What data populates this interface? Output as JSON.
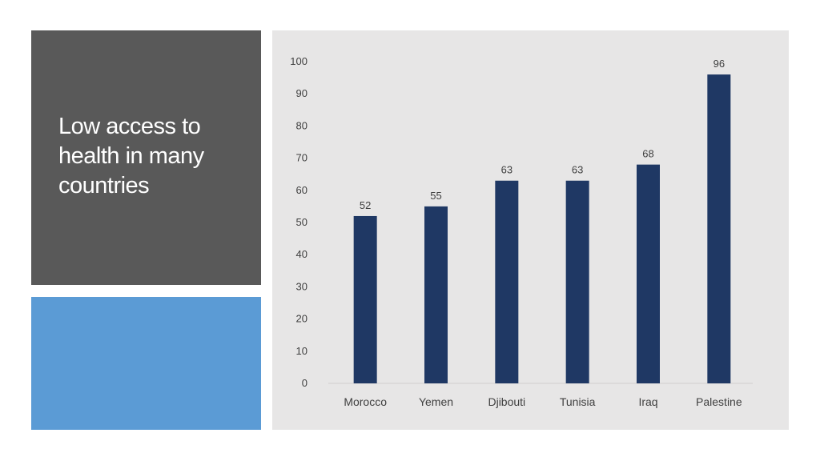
{
  "slide": {
    "title": "Low access to health in many countries",
    "colors": {
      "title_panel": "#595959",
      "accent_panel": "#5b9bd5",
      "chart_background": "#e7e6e6",
      "bar": "#1f3864"
    }
  },
  "chart_data": {
    "type": "bar",
    "title": "",
    "xlabel": "",
    "ylabel": "",
    "categories": [
      "Morocco",
      "Yemen",
      "Djibouti",
      "Tunisia",
      "Iraq",
      "Palestine"
    ],
    "values": [
      52,
      55,
      63,
      63,
      68,
      96
    ],
    "ylim": [
      0,
      100
    ],
    "yticks": [
      0,
      10,
      20,
      30,
      40,
      50,
      60,
      70,
      80,
      90,
      100
    ],
    "data_labels": true,
    "grid": false,
    "legend": "none"
  }
}
